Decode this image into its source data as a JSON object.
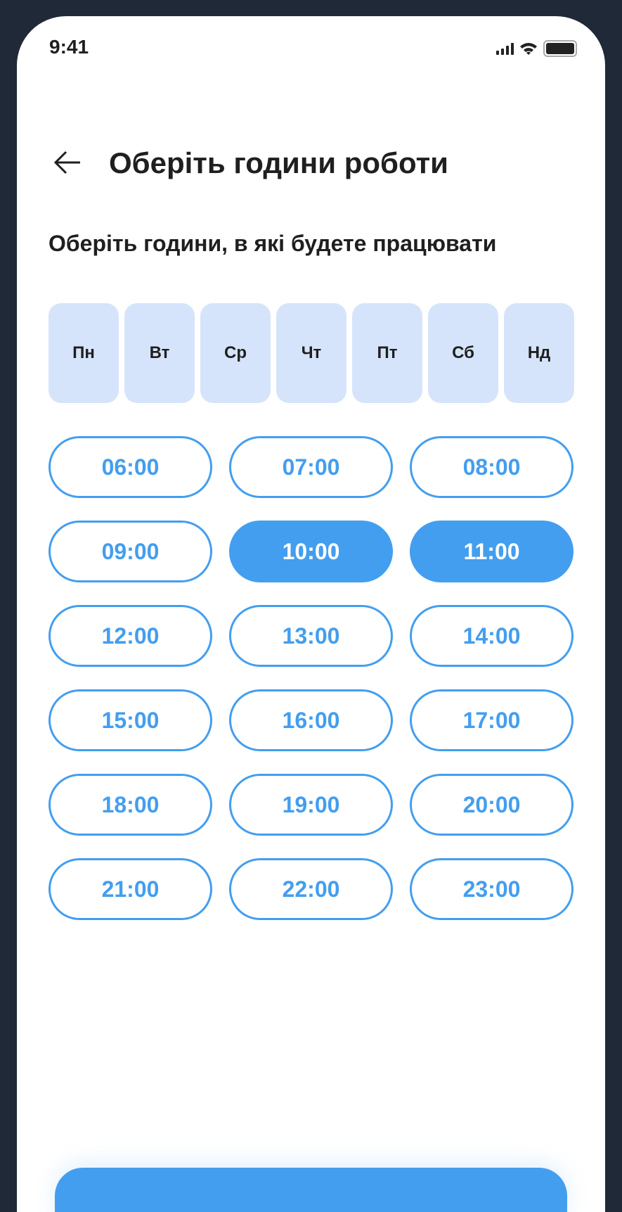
{
  "status_bar": {
    "time": "9:41"
  },
  "header": {
    "title": "Оберіть години роботи",
    "back_icon": "arrow-left-icon"
  },
  "subtitle": "Оберіть години, в які будете працювати",
  "days": [
    {
      "label": "Пн"
    },
    {
      "label": "Вт"
    },
    {
      "label": "Ср"
    },
    {
      "label": "Чт"
    },
    {
      "label": "Пт"
    },
    {
      "label": "Сб"
    },
    {
      "label": "Нд"
    }
  ],
  "hours": [
    {
      "label": "06:00",
      "selected": false
    },
    {
      "label": "07:00",
      "selected": false
    },
    {
      "label": "08:00",
      "selected": false
    },
    {
      "label": "09:00",
      "selected": false
    },
    {
      "label": "10:00",
      "selected": true
    },
    {
      "label": "11:00",
      "selected": true
    },
    {
      "label": "12:00",
      "selected": false
    },
    {
      "label": "13:00",
      "selected": false
    },
    {
      "label": "14:00",
      "selected": false
    },
    {
      "label": "15:00",
      "selected": false
    },
    {
      "label": "16:00",
      "selected": false
    },
    {
      "label": "17:00",
      "selected": false
    },
    {
      "label": "18:00",
      "selected": false
    },
    {
      "label": "19:00",
      "selected": false
    },
    {
      "label": "20:00",
      "selected": false
    },
    {
      "label": "21:00",
      "selected": false
    },
    {
      "label": "22:00",
      "selected": false
    },
    {
      "label": "23:00",
      "selected": false
    }
  ],
  "colors": {
    "accent": "#439EEF",
    "day_bg": "#D6E4FB",
    "frame": "#1F2937"
  }
}
